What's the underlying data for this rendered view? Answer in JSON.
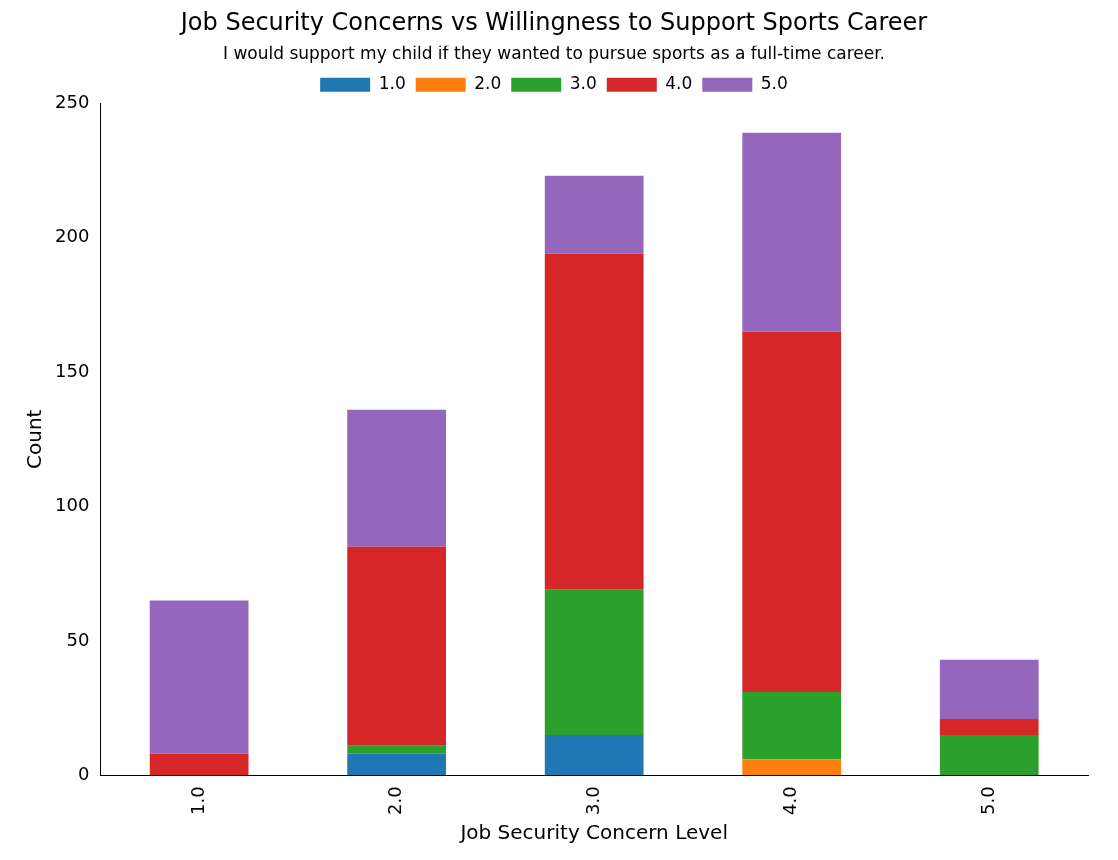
{
  "chart_data": {
    "type": "bar",
    "title": "Job Security Concerns vs Willingness to Support Sports Career",
    "xlabel": "Job Security Concern Level",
    "ylabel": "Count",
    "legend_title": "I would support my child if they wanted to pursue sports as a full-time career.",
    "categories": [
      "1.0",
      "2.0",
      "3.0",
      "4.0",
      "5.0"
    ],
    "series": [
      {
        "name": "1.0",
        "color": "#1f77b4",
        "values": [
          0,
          8,
          15,
          0,
          0
        ]
      },
      {
        "name": "2.0",
        "color": "#ff7f0e",
        "values": [
          0,
          0,
          0,
          6,
          0
        ]
      },
      {
        "name": "3.0",
        "color": "#2ca02c",
        "values": [
          0,
          3,
          54,
          25,
          15
        ]
      },
      {
        "name": "4.0",
        "color": "#d62728",
        "values": [
          8,
          74,
          125,
          134,
          6
        ]
      },
      {
        "name": "5.0",
        "color": "#9467bd",
        "values": [
          57,
          51,
          29,
          74,
          22
        ]
      }
    ],
    "stacked": true,
    "ylim": [
      0,
      250
    ],
    "yticks": [
      0,
      50,
      100,
      150,
      200,
      250
    ],
    "grid": false,
    "legend": "top"
  }
}
